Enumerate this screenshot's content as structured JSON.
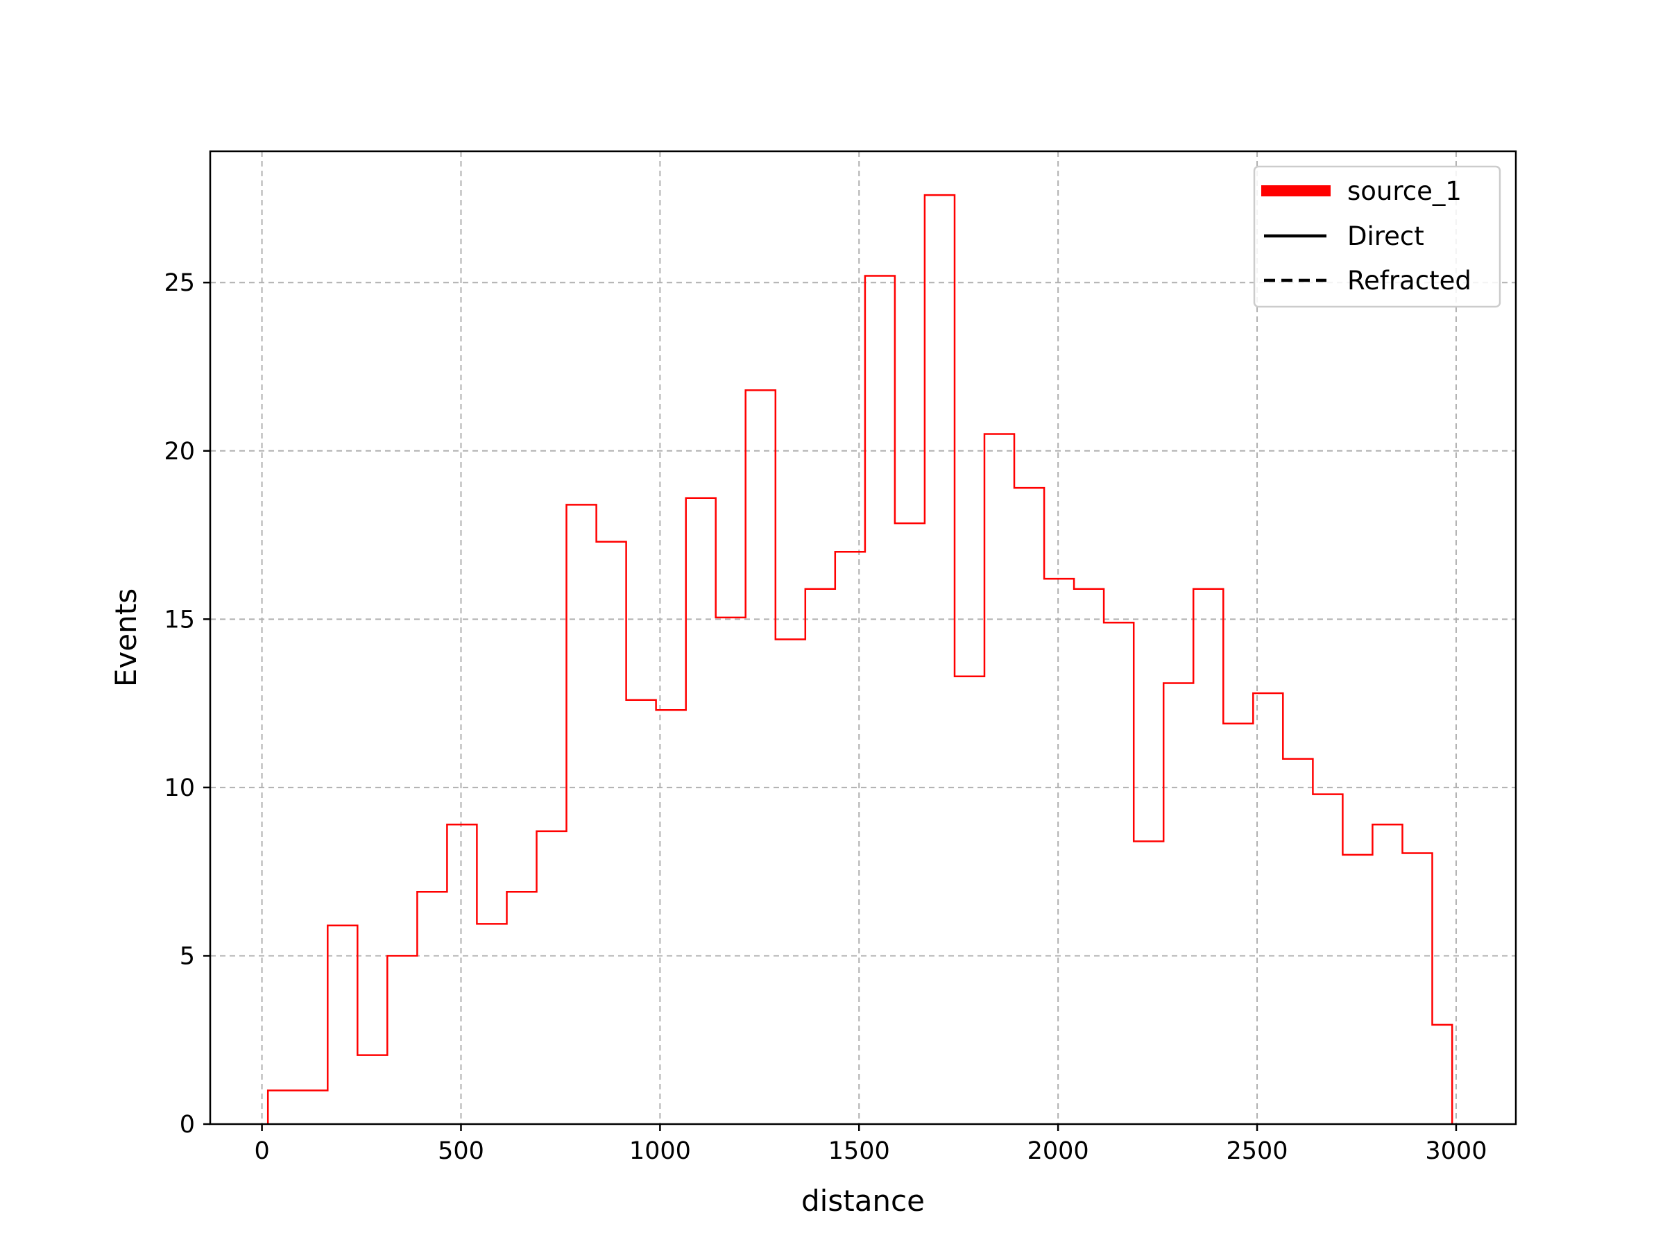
{
  "chart_data": {
    "type": "histogram",
    "title": "",
    "xlabel": "distance",
    "ylabel": "Events",
    "xlim": [
      -130,
      3150
    ],
    "ylim": [
      0,
      28.9
    ],
    "xticks": [
      0,
      500,
      1000,
      1500,
      2000,
      2500,
      3000
    ],
    "yticks": [
      0,
      5,
      10,
      15,
      20,
      25
    ],
    "grid": true,
    "legend_position": "top-right",
    "legend": [
      {
        "label": "source_1",
        "style": "thick-solid",
        "color": "#ff0000"
      },
      {
        "label": "Direct",
        "style": "solid",
        "color": "#000000"
      },
      {
        "label": "Refracted",
        "style": "dashed",
        "color": "#000000"
      }
    ],
    "series": [
      {
        "name": "source_1",
        "color": "#ff0000",
        "bin_edges": [
          15,
          90,
          165,
          240,
          315,
          390,
          465,
          540,
          615,
          690,
          765,
          840,
          915,
          990,
          1065,
          1140,
          1215,
          1290,
          1365,
          1440,
          1515,
          1590,
          1665,
          1740,
          1815,
          1890,
          1965,
          2040,
          2115,
          2190,
          2265,
          2340,
          2415,
          2490,
          2565,
          2640,
          2715,
          2790,
          2865,
          2940,
          2990
        ],
        "values": [
          1.0,
          1.0,
          5.9,
          2.05,
          5.0,
          6.9,
          8.9,
          5.95,
          6.9,
          8.7,
          18.4,
          17.3,
          12.6,
          12.3,
          18.6,
          15.05,
          21.8,
          14.4,
          15.9,
          17.0,
          25.2,
          17.85,
          27.6,
          13.3,
          20.5,
          18.9,
          16.2,
          15.9,
          14.9,
          8.4,
          13.1,
          15.9,
          11.9,
          12.8,
          10.85,
          9.8,
          8.0,
          8.9,
          8.05,
          2.95
        ]
      }
    ]
  }
}
